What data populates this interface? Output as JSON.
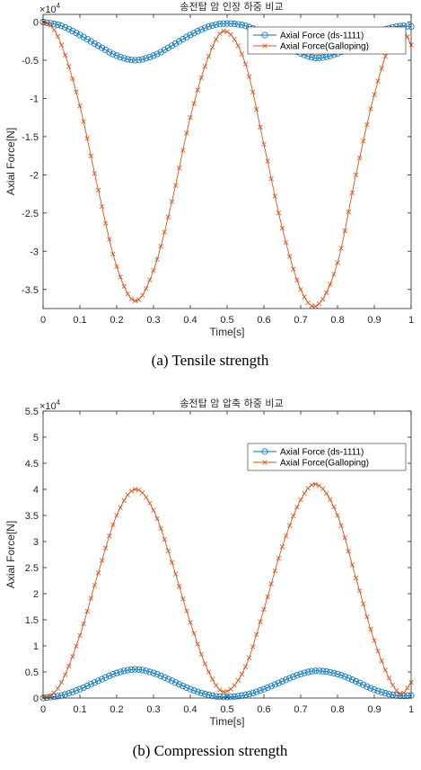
{
  "chart_data": [
    {
      "type": "line",
      "title": "송전탑 암 인장 하중 비교",
      "xlabel": "Time[s]",
      "ylabel": "Axial Force[N]",
      "y_multiplier_base": "×10",
      "y_multiplier_exp": "4",
      "caption": "(a) Tensile strength",
      "xlim": [
        0,
        1
      ],
      "ylim": [
        -3.75,
        0.1
      ],
      "xticks": [
        "0",
        "0.1",
        "0.2",
        "0.3",
        "0.4",
        "0.5",
        "0.6",
        "0.7",
        "0.8",
        "0.9",
        "1"
      ],
      "yticks": [
        "0",
        "-0.5",
        "-1",
        "-1.5",
        "-2",
        "-2.5",
        "-3",
        "-3.5"
      ],
      "ytick_values": [
        0,
        -0.5,
        -1,
        -1.5,
        -2,
        -2.5,
        -3,
        -3.5
      ],
      "legend_position": "top-right",
      "series": [
        {
          "name": "Axial Force (ds-1111)",
          "color": "#0072BD",
          "marker": "circle",
          "x": [
            0,
            0.05,
            0.1,
            0.15,
            0.2,
            0.25,
            0.3,
            0.35,
            0.4,
            0.45,
            0.49,
            0.55,
            0.6,
            0.65,
            0.7,
            0.74,
            0.8,
            0.85,
            0.9,
            0.95,
            0.98,
            1.0
          ],
          "values": [
            0.0,
            -0.05,
            -0.17,
            -0.31,
            -0.44,
            -0.5,
            -0.44,
            -0.31,
            -0.17,
            -0.06,
            -0.02,
            -0.05,
            -0.15,
            -0.28,
            -0.41,
            -0.47,
            -0.41,
            -0.28,
            -0.15,
            -0.07,
            -0.05,
            -0.06
          ]
        },
        {
          "name": "Axial Force(Galloping)",
          "color": "#D95319",
          "marker": "x",
          "x": [
            0,
            0.025,
            0.05,
            0.1,
            0.15,
            0.2,
            0.25,
            0.3,
            0.35,
            0.4,
            0.45,
            0.49,
            0.55,
            0.6,
            0.65,
            0.7,
            0.74,
            0.8,
            0.85,
            0.9,
            0.95,
            0.975,
            1.0
          ],
          "values": [
            0.0,
            -0.07,
            -0.3,
            -1.1,
            -2.2,
            -3.2,
            -3.65,
            -3.25,
            -2.35,
            -1.25,
            -0.45,
            -0.12,
            -0.55,
            -1.6,
            -2.7,
            -3.5,
            -3.72,
            -3.15,
            -2.0,
            -0.95,
            -0.2,
            -0.08,
            -0.3
          ]
        }
      ]
    },
    {
      "type": "line",
      "title": "송전탑 암 압축 하중 비교",
      "xlabel": "Time[s]",
      "ylabel": "Axial Force[N]",
      "y_multiplier_base": "×10",
      "y_multiplier_exp": "4",
      "caption": "(b) Compression strength",
      "xlim": [
        0,
        1
      ],
      "ylim": [
        0,
        5.5
      ],
      "xticks": [
        "0",
        "0.1",
        "0.2",
        "0.3",
        "0.4",
        "0.5",
        "0.6",
        "0.7",
        "0.8",
        "0.9",
        "1"
      ],
      "yticks": [
        "0",
        "0.5",
        "1",
        "1.5",
        "2",
        "2.5",
        "3",
        "3.5",
        "4",
        "4.5",
        "5",
        "5.5"
      ],
      "ytick_values": [
        0,
        0.5,
        1,
        1.5,
        2,
        2.5,
        3,
        3.5,
        4,
        4.5,
        5,
        5.5
      ],
      "legend_position": "top-right",
      "series": [
        {
          "name": "Axial Force (ds-1111)",
          "color": "#0072BD",
          "marker": "circle",
          "x": [
            0,
            0.05,
            0.1,
            0.15,
            0.2,
            0.25,
            0.3,
            0.35,
            0.4,
            0.45,
            0.49,
            0.55,
            0.6,
            0.65,
            0.7,
            0.74,
            0.8,
            0.85,
            0.9,
            0.95,
            0.98,
            1.0
          ],
          "values": [
            0.0,
            0.05,
            0.17,
            0.33,
            0.48,
            0.55,
            0.48,
            0.33,
            0.17,
            0.06,
            0.02,
            0.06,
            0.17,
            0.32,
            0.46,
            0.52,
            0.46,
            0.32,
            0.16,
            0.06,
            0.04,
            0.05
          ]
        },
        {
          "name": "Axial Force(Galloping)",
          "color": "#D95319",
          "marker": "x",
          "x": [
            0,
            0.025,
            0.05,
            0.1,
            0.15,
            0.2,
            0.25,
            0.3,
            0.35,
            0.4,
            0.45,
            0.49,
            0.55,
            0.6,
            0.65,
            0.7,
            0.74,
            0.8,
            0.85,
            0.9,
            0.95,
            0.975,
            1.0
          ],
          "values": [
            0.0,
            0.07,
            0.3,
            1.2,
            2.4,
            3.5,
            4.0,
            3.6,
            2.6,
            1.45,
            0.5,
            0.12,
            0.6,
            1.7,
            2.9,
            3.8,
            4.1,
            3.5,
            2.3,
            1.1,
            0.25,
            0.08,
            0.3
          ]
        }
      ]
    }
  ]
}
